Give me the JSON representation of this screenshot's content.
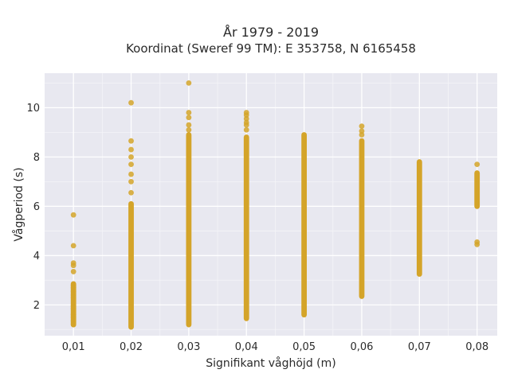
{
  "chart_data": {
    "type": "scatter",
    "title": "År 1979 - 2019",
    "subtitle": "Koordinat (Sweref 99 TM): E 353758, N 6165458",
    "xlabel": "Signifikant våghöjd (m)",
    "ylabel": "Vågperiod (s)",
    "xlim": [
      0.005,
      0.0835
    ],
    "ylim": [
      0.75,
      11.4
    ],
    "x_ticks": [
      {
        "value": 0.01,
        "label": "0,01"
      },
      {
        "value": 0.02,
        "label": "0,02"
      },
      {
        "value": 0.03,
        "label": "0,03"
      },
      {
        "value": 0.04,
        "label": "0,04"
      },
      {
        "value": 0.05,
        "label": "0,05"
      },
      {
        "value": 0.06,
        "label": "0,06"
      },
      {
        "value": 0.07,
        "label": "0,07"
      },
      {
        "value": 0.08,
        "label": "0,08"
      }
    ],
    "y_ticks": [
      {
        "value": 2,
        "label": "2"
      },
      {
        "value": 4,
        "label": "4"
      },
      {
        "value": 6,
        "label": "6"
      },
      {
        "value": 8,
        "label": "8"
      },
      {
        "value": 10,
        "label": "10"
      }
    ],
    "grid": true,
    "marker_color": "#d4a429",
    "background_color": "#e8e8f0",
    "series": [
      {
        "x": 0.01,
        "y_range": [
          1.2,
          2.85
        ],
        "points": [
          5.65,
          4.4,
          3.7,
          3.6,
          3.35,
          2.8,
          2.7,
          2.55,
          2.4,
          2.3,
          1.95,
          1.85,
          1.6,
          1.5,
          1.35,
          1.2
        ]
      },
      {
        "x": 0.02,
        "y_range": [
          1.1,
          6.1
        ],
        "points": [
          10.2,
          8.65,
          8.3,
          8.0,
          7.7,
          7.3,
          7.0,
          6.55
        ]
      },
      {
        "x": 0.03,
        "y_range": [
          1.2,
          8.9
        ],
        "points": [
          11.0,
          9.8,
          9.6,
          9.3,
          9.1
        ]
      },
      {
        "x": 0.04,
        "y_range": [
          1.45,
          8.8
        ],
        "points": [
          9.8,
          9.7,
          9.55,
          9.4,
          9.3,
          9.1
        ]
      },
      {
        "x": 0.05,
        "y_range": [
          1.6,
          8.9
        ],
        "points": []
      },
      {
        "x": 0.06,
        "y_range": [
          2.35,
          8.65
        ],
        "points": [
          9.25,
          9.05,
          8.9
        ]
      },
      {
        "x": 0.07,
        "y_range": [
          3.25,
          7.8
        ],
        "points": []
      },
      {
        "x": 0.08,
        "y_range": [
          6.0,
          7.35
        ],
        "points": [
          7.7,
          4.55,
          4.45
        ]
      }
    ]
  }
}
